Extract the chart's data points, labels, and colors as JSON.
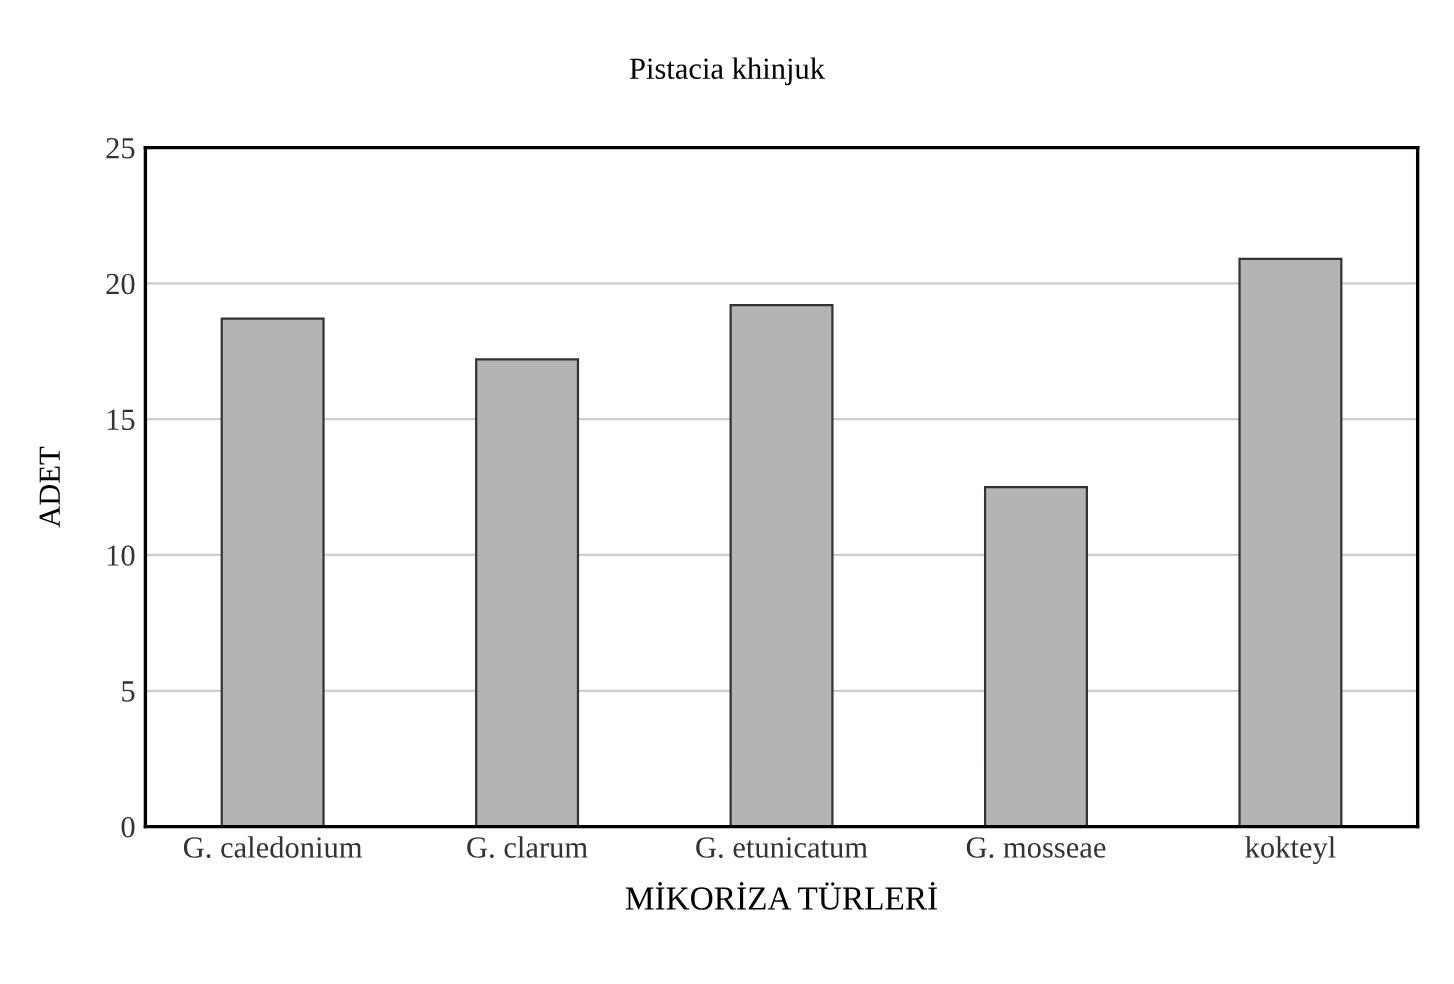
{
  "chart_data": {
    "type": "bar",
    "title": "Pistacia khinjuk",
    "xlabel": "MİKORİZA TÜRLERİ",
    "ylabel": "ADET",
    "categories": [
      "G. caledonium",
      "G. clarum",
      "G. etunicatum",
      "G. mosseae",
      "kokteyl"
    ],
    "values": [
      18.7,
      17.2,
      19.2,
      12.5,
      20.9
    ],
    "color": "#b4b4b4",
    "ylim": [
      0,
      25
    ],
    "yticks": [
      0,
      5,
      10,
      15,
      20,
      25
    ],
    "grid": "y"
  }
}
